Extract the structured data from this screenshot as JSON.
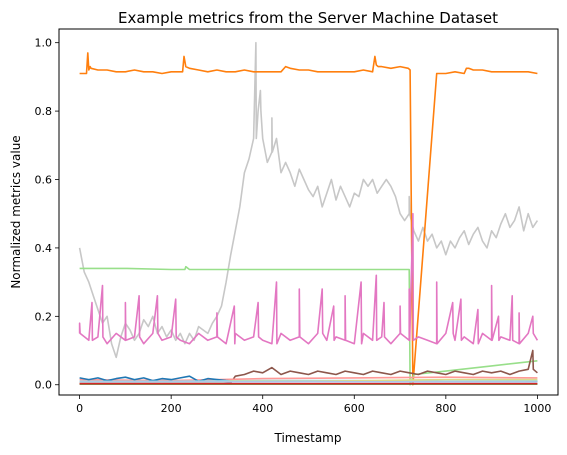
{
  "chart_data": {
    "type": "line",
    "title": "Example metrics from the Server Machine Dataset",
    "xlabel": "Timestamp",
    "ylabel": "Normalized metrics value",
    "xlim": [
      -45,
      1045
    ],
    "ylim": [
      -0.03,
      1.04
    ],
    "xticks": [
      0,
      200,
      400,
      600,
      800,
      1000
    ],
    "yticks": [
      0.0,
      0.2,
      0.4,
      0.6,
      0.8,
      1.0
    ],
    "xtick_labels": [
      "0",
      "200",
      "400",
      "600",
      "800",
      "1000"
    ],
    "ytick_labels": [
      "0.0",
      "0.2",
      "0.4",
      "0.6",
      "0.8",
      "1.0"
    ],
    "grid": false,
    "legend": "none",
    "series": [
      {
        "color": "#c7c7c7",
        "x": [
          0,
          10,
          20,
          30,
          40,
          50,
          60,
          70,
          80,
          90,
          100,
          110,
          120,
          130,
          140,
          150,
          160,
          170,
          180,
          190,
          200,
          210,
          220,
          230,
          240,
          250,
          260,
          270,
          280,
          290,
          300,
          310,
          320,
          330,
          340,
          350,
          360,
          370,
          380,
          390,
          400,
          410,
          420,
          430,
          440,
          450,
          460,
          470,
          480,
          490,
          500,
          510,
          520,
          530,
          540,
          550,
          560,
          570,
          580,
          590,
          600,
          610,
          620,
          630,
          640,
          650,
          660,
          670,
          680,
          690,
          700,
          710,
          720,
          730,
          740,
          750,
          760,
          770,
          780,
          790,
          800,
          810,
          820,
          830,
          840,
          850,
          860,
          870,
          880,
          890,
          900,
          910,
          920,
          930,
          940,
          950,
          960,
          970,
          980,
          990,
          1000
        ],
        "y": [
          0.4,
          0.33,
          0.3,
          0.26,
          0.22,
          0.18,
          0.2,
          0.12,
          0.08,
          0.14,
          0.18,
          0.16,
          0.13,
          0.15,
          0.19,
          0.17,
          0.2,
          0.15,
          0.17,
          0.14,
          0.16,
          0.13,
          0.15,
          0.12,
          0.15,
          0.13,
          0.17,
          0.16,
          0.15,
          0.18,
          0.2,
          0.23,
          0.3,
          0.38,
          0.45,
          0.52,
          0.62,
          0.66,
          0.72,
          0.8,
          0.72,
          0.65,
          0.68,
          0.72,
          0.62,
          0.65,
          0.62,
          0.58,
          0.63,
          0.6,
          0.57,
          0.55,
          0.58,
          0.52,
          0.56,
          0.6,
          0.54,
          0.58,
          0.55,
          0.52,
          0.56,
          0.55,
          0.6,
          0.58,
          0.6,
          0.56,
          0.58,
          0.6,
          0.58,
          0.55,
          0.5,
          0.48,
          0.5,
          0.45,
          0.42,
          0.46,
          0.42,
          0.44,
          0.4,
          0.42,
          0.38,
          0.42,
          0.4,
          0.43,
          0.45,
          0.41,
          0.44,
          0.46,
          0.42,
          0.4,
          0.45,
          0.43,
          0.47,
          0.5,
          0.46,
          0.48,
          0.52,
          0.45,
          0.5,
          0.46,
          0.48
        ],
        "spikes": [
          [
            385,
            1.0
          ],
          [
            395,
            0.86
          ],
          [
            420,
            0.78
          ],
          [
            720,
            0.55
          ]
        ]
      },
      {
        "color": "#ff7f0e",
        "x": [
          0,
          15,
          18,
          20,
          23,
          25,
          40,
          60,
          80,
          100,
          120,
          140,
          160,
          180,
          200,
          225,
          228,
          232,
          240,
          260,
          280,
          300,
          320,
          340,
          360,
          380,
          400,
          420,
          440,
          450,
          460,
          480,
          500,
          520,
          540,
          560,
          580,
          600,
          620,
          640,
          645,
          648,
          652,
          660,
          680,
          700,
          718,
          722,
          728,
          780,
          800,
          820,
          840,
          845,
          850,
          860,
          880,
          900,
          920,
          940,
          960,
          980,
          1000
        ],
        "y": [
          0.91,
          0.91,
          0.97,
          0.92,
          0.93,
          0.925,
          0.92,
          0.92,
          0.915,
          0.915,
          0.92,
          0.915,
          0.915,
          0.91,
          0.915,
          0.915,
          0.96,
          0.93,
          0.925,
          0.92,
          0.915,
          0.92,
          0.915,
          0.915,
          0.92,
          0.915,
          0.915,
          0.915,
          0.915,
          0.93,
          0.925,
          0.92,
          0.92,
          0.915,
          0.915,
          0.915,
          0.915,
          0.915,
          0.92,
          0.915,
          0.96,
          0.935,
          0.93,
          0.93,
          0.925,
          0.93,
          0.925,
          0.92,
          0.0,
          0.91,
          0.91,
          0.915,
          0.91,
          0.925,
          0.925,
          0.92,
          0.92,
          0.915,
          0.915,
          0.915,
          0.915,
          0.915,
          0.91
        ]
      },
      {
        "color": "#98df8a",
        "x": [
          0,
          100,
          200,
          230,
          232,
          240,
          300,
          400,
          500,
          600,
          700,
          720,
          722,
          730,
          800,
          900,
          1000
        ],
        "y": [
          0.34,
          0.34,
          0.337,
          0.337,
          0.345,
          0.337,
          0.337,
          0.337,
          0.337,
          0.337,
          0.337,
          0.337,
          0.0,
          0.03,
          0.04,
          0.055,
          0.07
        ]
      },
      {
        "color": "#e377c2",
        "x": [
          0,
          20,
          40,
          60,
          80,
          100,
          120,
          140,
          160,
          180,
          200,
          220,
          240,
          260,
          280,
          300,
          320,
          340,
          360,
          380,
          400,
          420,
          440,
          460,
          480,
          500,
          520,
          540,
          560,
          580,
          600,
          620,
          640,
          660,
          680,
          700,
          720,
          740,
          760,
          780,
          800,
          820,
          840,
          860,
          880,
          900,
          920,
          940,
          960,
          980,
          1000
        ],
        "y": [
          0.15,
          0.13,
          0.14,
          0.12,
          0.15,
          0.13,
          0.14,
          0.12,
          0.15,
          0.13,
          0.14,
          0.13,
          0.12,
          0.15,
          0.13,
          0.14,
          0.12,
          0.15,
          0.13,
          0.14,
          0.13,
          0.12,
          0.15,
          0.13,
          0.14,
          0.12,
          0.15,
          0.13,
          0.14,
          0.13,
          0.12,
          0.15,
          0.13,
          0.14,
          0.12,
          0.15,
          0.13,
          0.14,
          0.13,
          0.12,
          0.15,
          0.13,
          0.14,
          0.12,
          0.15,
          0.13,
          0.14,
          0.13,
          0.12,
          0.15,
          0.13
        ],
        "spikes": [
          [
            0,
            0.18
          ],
          [
            27,
            0.24
          ],
          [
            50,
            0.29
          ],
          [
            100,
            0.24
          ],
          [
            130,
            0.26
          ],
          [
            170,
            0.26
          ],
          [
            210,
            0.25
          ],
          [
            300,
            0.21
          ],
          [
            338,
            0.23
          ],
          [
            390,
            0.24
          ],
          [
            430,
            0.3
          ],
          [
            480,
            0.28
          ],
          [
            530,
            0.28
          ],
          [
            555,
            0.23
          ],
          [
            580,
            0.26
          ],
          [
            615,
            0.3
          ],
          [
            648,
            0.32
          ],
          [
            665,
            0.24
          ],
          [
            700,
            0.23
          ],
          [
            720,
            0.28
          ],
          [
            728,
            0.5
          ],
          [
            780,
            0.3
          ],
          [
            815,
            0.24
          ],
          [
            833,
            0.25
          ],
          [
            870,
            0.22
          ],
          [
            900,
            0.29
          ],
          [
            915,
            0.2
          ],
          [
            945,
            0.26
          ],
          [
            960,
            0.21
          ],
          [
            990,
            0.2
          ]
        ]
      },
      {
        "color": "#8c564b",
        "x": [
          0,
          100,
          200,
          300,
          330,
          340,
          360,
          380,
          400,
          420,
          440,
          460,
          480,
          500,
          520,
          540,
          560,
          580,
          600,
          620,
          640,
          660,
          680,
          700,
          720,
          740,
          760,
          780,
          800,
          820,
          840,
          860,
          880,
          900,
          920,
          940,
          960,
          980,
          1000
        ],
        "y": [
          0.005,
          0.005,
          0.005,
          0.005,
          0.005,
          0.025,
          0.03,
          0.04,
          0.035,
          0.05,
          0.03,
          0.04,
          0.035,
          0.03,
          0.04,
          0.035,
          0.03,
          0.04,
          0.035,
          0.03,
          0.04,
          0.035,
          0.03,
          0.04,
          0.035,
          0.03,
          0.04,
          0.035,
          0.03,
          0.04,
          0.035,
          0.03,
          0.04,
          0.035,
          0.04,
          0.03,
          0.04,
          0.045,
          0.035
        ],
        "spikes": [
          [
            990,
            0.1
          ]
        ]
      },
      {
        "color": "#ff9896",
        "x": [
          0,
          200,
          400,
          600,
          800,
          1000
        ],
        "y": [
          0.015,
          0.012,
          0.018,
          0.02,
          0.022,
          0.02
        ]
      },
      {
        "color": "#1f77b4",
        "x": [
          0,
          20,
          40,
          60,
          80,
          100,
          120,
          140,
          160,
          180,
          200,
          220,
          240,
          260,
          280,
          300,
          320,
          340,
          1000
        ],
        "y": [
          0.02,
          0.015,
          0.02,
          0.012,
          0.018,
          0.022,
          0.015,
          0.02,
          0.012,
          0.018,
          0.015,
          0.02,
          0.025,
          0.01,
          0.018,
          0.015,
          0.012,
          0.01,
          0.01
        ]
      },
      {
        "color": "#9edae5",
        "x": [
          0,
          200,
          400,
          600,
          800,
          1000
        ],
        "y": [
          0.01,
          0.01,
          0.012,
          0.012,
          0.01,
          0.012
        ]
      },
      {
        "color": "#2ca02c",
        "x": [
          0,
          1000
        ],
        "y": [
          0.002,
          0.002
        ]
      },
      {
        "color": "#dbdb8d",
        "x": [
          0,
          300,
          330,
          500,
          800,
          1000
        ],
        "y": [
          0.005,
          0.005,
          0.01,
          0.01,
          0.015,
          0.015
        ]
      },
      {
        "color": "#aec7e8",
        "x": [
          0,
          500,
          1000
        ],
        "y": [
          0.008,
          0.009,
          0.008
        ]
      },
      {
        "color": "#d62728",
        "x": [
          0,
          500,
          1000
        ],
        "y": [
          0.003,
          0.003,
          0.003
        ]
      }
    ]
  }
}
